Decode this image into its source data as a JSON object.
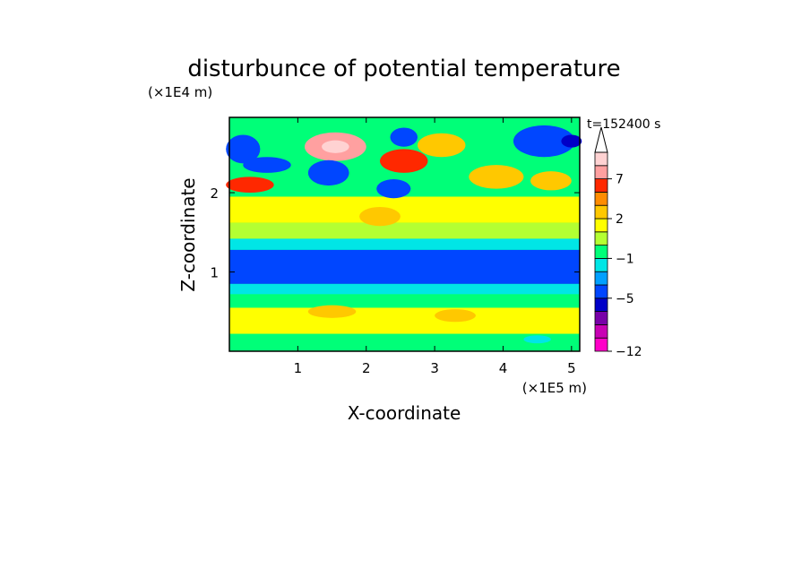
{
  "chart_data": {
    "type": "heatmap",
    "title": "disturbunce of potential temperature",
    "xlabel": "X-coordinate",
    "ylabel": "Z-coordinate",
    "x_scale_label": "(×1E5 m)",
    "y_scale_label": "(×1E4 m)",
    "time_label": "t=152400 s",
    "xlim": [
      0,
      5.12
    ],
    "ylim": [
      0,
      2.95
    ],
    "x_ticks": [
      {
        "value": 1,
        "label": "1"
      },
      {
        "value": 2,
        "label": "2"
      },
      {
        "value": 3,
        "label": "3"
      },
      {
        "value": 4,
        "label": "4"
      },
      {
        "value": 5,
        "label": "5"
      }
    ],
    "y_ticks": [
      {
        "value": 1,
        "label": "1"
      },
      {
        "value": 2,
        "label": "2"
      }
    ],
    "colorbar": {
      "levels": [
        -12,
        -11,
        -9,
        -7,
        -5,
        -4,
        -3,
        -1,
        0,
        1,
        2,
        4,
        6,
        7,
        8,
        10
      ],
      "labeled": [
        {
          "value": -12,
          "label": "−12"
        },
        {
          "value": -5,
          "label": "−5"
        },
        {
          "value": -1,
          "label": "−1"
        },
        {
          "value": 2,
          "label": "2"
        },
        {
          "value": 7,
          "label": "7"
        }
      ],
      "colors": [
        "#ff00c8",
        "#c800b4",
        "#7800a8",
        "#0000c8",
        "#0046ff",
        "#00a0ff",
        "#00e6e6",
        "#00ff78",
        "#b4ff32",
        "#ffff00",
        "#ffc800",
        "#ff8c00",
        "#ff2800",
        "#ffa0a0",
        "#ffd2d2"
      ],
      "extend": "max"
    },
    "field": {
      "background": -0.5,
      "bands": [
        {
          "z_bottom": 0.0,
          "z_top": 0.22,
          "value": -0.5
        },
        {
          "z_bottom": 0.22,
          "z_top": 0.55,
          "value": 1.2
        },
        {
          "z_bottom": 0.55,
          "z_top": 0.72,
          "value": -0.5
        },
        {
          "z_bottom": 0.72,
          "z_top": 0.85,
          "value": -2.0
        },
        {
          "z_bottom": 0.85,
          "z_top": 1.28,
          "value": -4.5
        },
        {
          "z_bottom": 1.28,
          "z_top": 1.42,
          "value": -2.0
        },
        {
          "z_bottom": 1.42,
          "z_top": 1.62,
          "value": 0.5
        },
        {
          "z_bottom": 1.62,
          "z_top": 1.95,
          "value": 1.5
        }
      ],
      "blobs": [
        {
          "x": 0.2,
          "z": 2.55,
          "a": 2.5,
          "b": 0.18,
          "value": -4.5
        },
        {
          "x": 0.55,
          "z": 2.35,
          "a": 3.5,
          "b": 0.1,
          "value": -4.5
        },
        {
          "x": 0.3,
          "z": 2.1,
          "a": 3.5,
          "b": 0.1,
          "value": 6.5
        },
        {
          "x": 1.55,
          "z": 2.58,
          "a": 4.5,
          "b": 0.18,
          "value": 7.5
        },
        {
          "x": 1.55,
          "z": 2.58,
          "a": 2.0,
          "b": 0.08,
          "value": 8.5
        },
        {
          "x": 1.45,
          "z": 2.25,
          "a": 3.0,
          "b": 0.16,
          "value": -4.5
        },
        {
          "x": 2.55,
          "z": 2.7,
          "a": 2.0,
          "b": 0.12,
          "value": -4.5
        },
        {
          "x": 2.55,
          "z": 2.4,
          "a": 3.5,
          "b": 0.15,
          "value": 6.5
        },
        {
          "x": 2.4,
          "z": 2.05,
          "a": 2.5,
          "b": 0.12,
          "value": -4.5
        },
        {
          "x": 3.1,
          "z": 2.6,
          "a": 3.5,
          "b": 0.15,
          "value": 3.0
        },
        {
          "x": 4.6,
          "z": 2.65,
          "a": 4.5,
          "b": 0.2,
          "value": -4.5
        },
        {
          "x": 5.0,
          "z": 2.65,
          "a": 1.5,
          "b": 0.08,
          "value": -6.0
        },
        {
          "x": 3.9,
          "z": 2.2,
          "a": 4.0,
          "b": 0.15,
          "value": 3.0
        },
        {
          "x": 4.7,
          "z": 2.15,
          "a": 3.0,
          "b": 0.12,
          "value": 3.0
        },
        {
          "x": 2.2,
          "z": 1.7,
          "a": 3.0,
          "b": 0.12,
          "value": 3.0
        },
        {
          "x": 1.5,
          "z": 0.5,
          "a": 3.5,
          "b": 0.08,
          "value": 3.0
        },
        {
          "x": 3.3,
          "z": 0.45,
          "a": 3.0,
          "b": 0.08,
          "value": 3.0
        },
        {
          "x": 4.5,
          "z": 0.15,
          "a": 2.0,
          "b": 0.05,
          "value": -2.0
        }
      ]
    }
  }
}
